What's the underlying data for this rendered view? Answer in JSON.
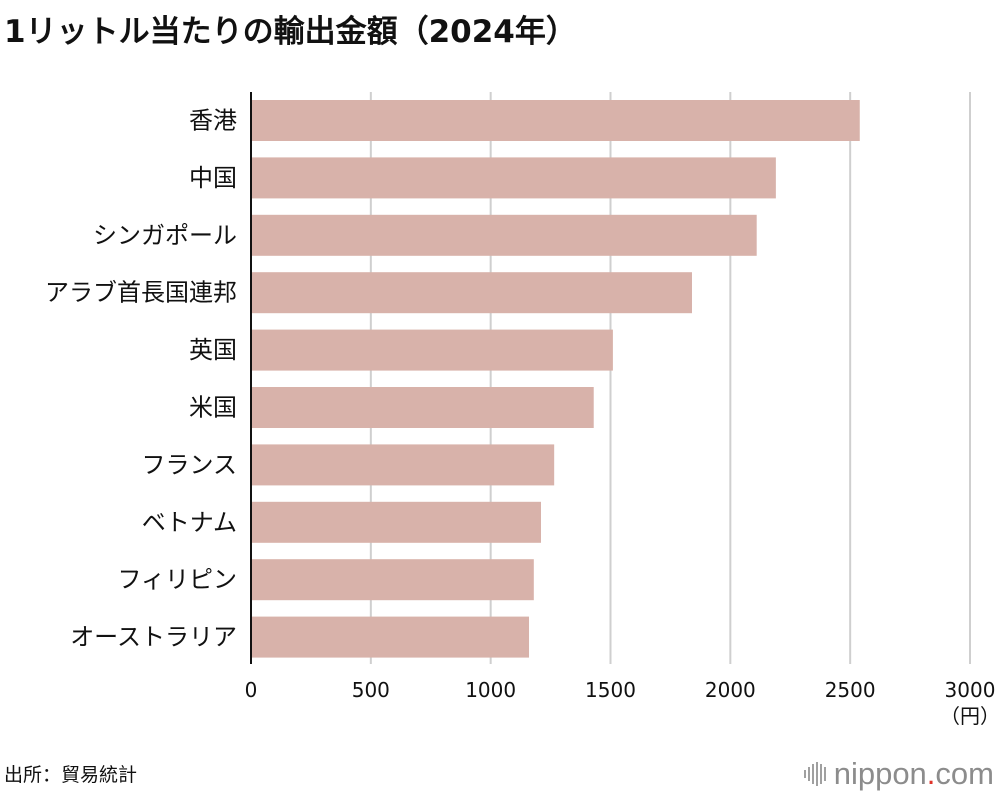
{
  "title": "1リットル当たりの輸出金額（2024年）",
  "source": "出所：貿易統計",
  "logo": {
    "name": "nippon",
    "dot": ".",
    "tld": "com"
  },
  "chart_data": {
    "type": "bar",
    "orientation": "horizontal",
    "categories": [
      "香港",
      "中国",
      "シンガポール",
      "アラブ首長国連邦",
      "英国",
      "米国",
      "フランス",
      "ベトナム",
      "フィリピン",
      "オーストラリア"
    ],
    "values": [
      2540,
      2190,
      2110,
      1840,
      1510,
      1430,
      1265,
      1210,
      1180,
      1160
    ],
    "xlim": [
      0,
      3000
    ],
    "xticks": [
      "0",
      "500",
      "1000",
      "1500",
      "2000",
      "2500",
      "3000"
    ],
    "xlabel": "（円）",
    "grid": true,
    "bar_color": "#d8b2aa"
  }
}
